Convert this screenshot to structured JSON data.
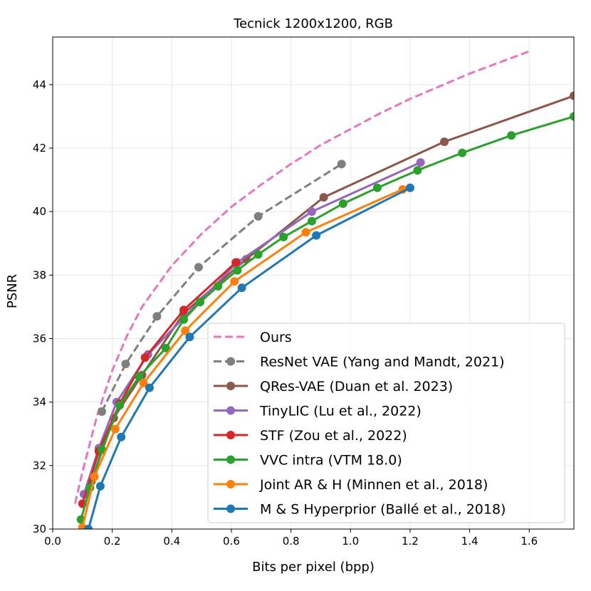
{
  "chart_data": {
    "type": "line",
    "title": "Tecnick 1200x1200, RGB",
    "xlabel": "Bits per pixel (bpp)",
    "ylabel": "PSNR",
    "xlim": [
      0.0,
      1.75
    ],
    "ylim": [
      30,
      45.5
    ],
    "xticks": [
      "0.0",
      "0.2",
      "0.4",
      "0.6",
      "0.8",
      "1.0",
      "1.2",
      "1.4",
      "1.6"
    ],
    "yticks": [
      "30",
      "32",
      "34",
      "36",
      "38",
      "40",
      "42",
      "44"
    ],
    "grid": true,
    "legend_position": "lower-right",
    "series": [
      {
        "name": "Ours",
        "color": "#e377c2",
        "dashed": true,
        "markers": false,
        "x": [
          0.075,
          0.1,
          0.15,
          0.2,
          0.25,
          0.3,
          0.4,
          0.5,
          0.6,
          0.7,
          0.8,
          0.9,
          1.0,
          1.1,
          1.2,
          1.3,
          1.4,
          1.5,
          1.6
        ],
        "y": [
          30.8,
          31.8,
          33.6,
          35.0,
          36.1,
          37.0,
          38.3,
          39.3,
          40.15,
          40.85,
          41.5,
          42.1,
          42.6,
          43.1,
          43.55,
          43.95,
          44.35,
          44.7,
          45.05
        ]
      },
      {
        "name": "ResNet VAE (Yang and Mandt, 2021)",
        "color": "#7f7f7f",
        "dashed": true,
        "markers": true,
        "x": [
          0.165,
          0.245,
          0.35,
          0.49,
          0.69,
          0.97
        ],
        "y": [
          33.7,
          35.2,
          36.7,
          38.25,
          39.85,
          41.5
        ]
      },
      {
        "name": "QRes-VAE (Duan et al. 2023)",
        "color": "#8c564b",
        "dashed": false,
        "markers": true,
        "x": [
          0.13,
          0.205,
          0.3,
          0.44,
          0.65,
          0.91,
          1.315,
          1.75
        ],
        "y": [
          31.5,
          33.5,
          34.85,
          36.8,
          38.5,
          40.45,
          42.2,
          43.65
        ]
      },
      {
        "name": "TinyLIC (Lu et al., 2022)",
        "color": "#9467bd",
        "dashed": false,
        "markers": true,
        "x": [
          0.105,
          0.155,
          0.215,
          0.32,
          0.62,
          0.87,
          1.235
        ],
        "y": [
          31.1,
          32.55,
          34.0,
          35.5,
          38.4,
          40.0,
          41.55
        ]
      },
      {
        "name": "STF (Zou et al., 2022)",
        "color": "#d62728",
        "dashed": false,
        "markers": true,
        "x": [
          0.1,
          0.155,
          0.225,
          0.31,
          0.44,
          0.615
        ],
        "y": [
          30.8,
          32.45,
          33.95,
          35.4,
          36.9,
          38.4
        ]
      },
      {
        "name": "VVC intra (VTM 18.0)",
        "color": "#2ca02c",
        "dashed": false,
        "markers": true,
        "x": [
          0.095,
          0.125,
          0.165,
          0.225,
          0.29,
          0.38,
          0.44,
          0.495,
          0.555,
          0.62,
          0.69,
          0.775,
          0.87,
          0.975,
          1.09,
          1.225,
          1.375,
          1.54,
          1.75
        ],
        "y": [
          30.3,
          31.3,
          32.5,
          33.9,
          34.8,
          35.7,
          36.6,
          37.15,
          37.65,
          38.15,
          38.65,
          39.2,
          39.7,
          40.25,
          40.75,
          41.3,
          41.85,
          42.4,
          43.0
        ]
      },
      {
        "name": "Joint AR & H (Minnen et al., 2018)",
        "color": "#ff7f0e",
        "dashed": false,
        "markers": true,
        "x": [
          0.1,
          0.14,
          0.21,
          0.305,
          0.445,
          0.61,
          0.85,
          1.175
        ],
        "y": [
          30.05,
          31.65,
          33.15,
          34.6,
          36.25,
          37.8,
          39.35,
          40.7
        ]
      },
      {
        "name": "M & S Hyperprior (Ballé et al., 2018)",
        "color": "#1f77b4",
        "dashed": false,
        "markers": true,
        "x": [
          0.12,
          0.16,
          0.23,
          0.325,
          0.46,
          0.635,
          0.885,
          1.2
        ],
        "y": [
          30.0,
          31.35,
          32.9,
          34.45,
          36.05,
          37.6,
          39.25,
          40.75
        ]
      }
    ]
  }
}
